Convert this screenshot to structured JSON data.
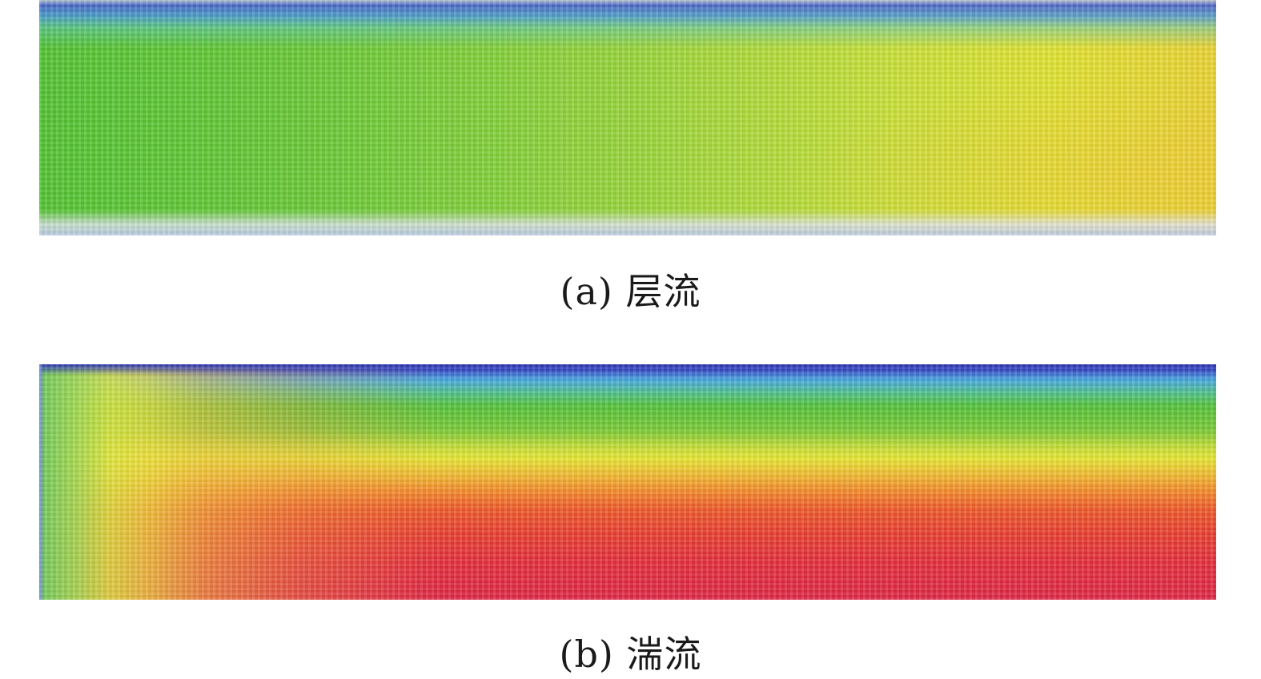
{
  "figure": {
    "panels": [
      {
        "id": "a",
        "caption": "(a) 层流"
      },
      {
        "id": "b",
        "caption": "(b) 湍流"
      }
    ],
    "colormap": [
      "#3a46c6",
      "#46a8dc",
      "#54c13a",
      "#e6e432",
      "#f38a2a",
      "#de2745"
    ]
  }
}
